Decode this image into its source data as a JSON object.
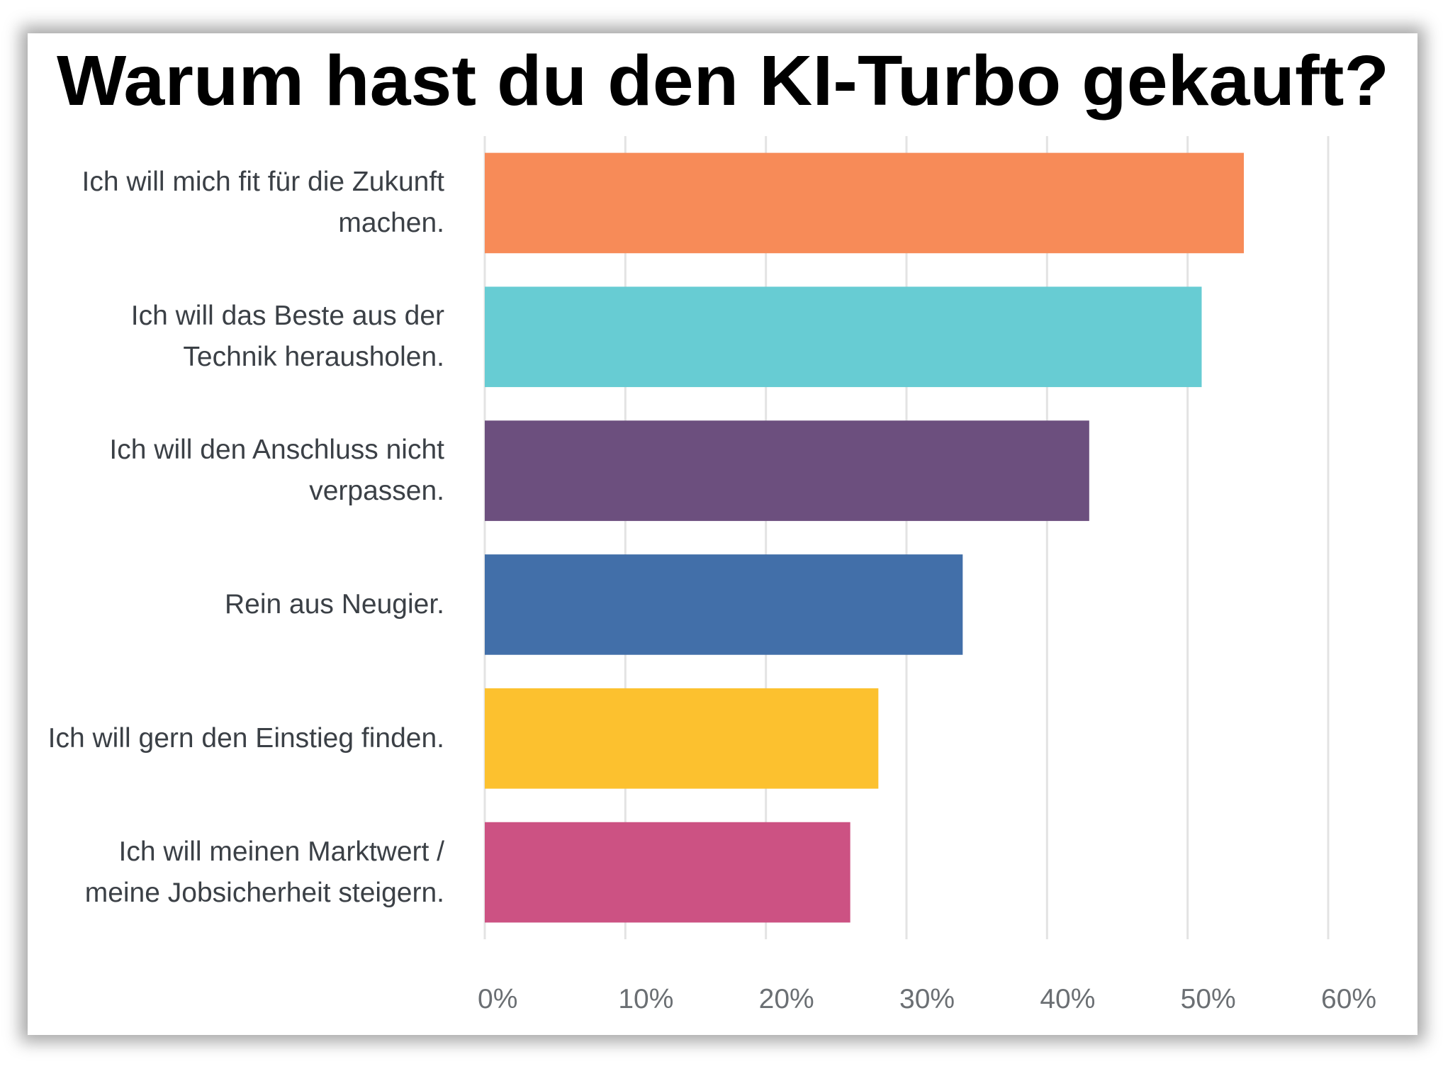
{
  "chart_data": {
    "type": "bar",
    "orientation": "horizontal",
    "title": "Warum hast du den KI-Turbo gekauft?",
    "categories": [
      "Ich will mich fit für die Zukunft machen.",
      "Ich will das Beste aus der Technik herausholen.",
      "Ich will den Anschluss nicht verpassen.",
      "Rein aus Neugier.",
      "Ich will gern den Einstieg finden.",
      "Ich will meinen Marktwert / meine Jobsicherheit steigern."
    ],
    "values": [
      54,
      51,
      43,
      34,
      28,
      26
    ],
    "colors": [
      "#f78b58",
      "#67ccd3",
      "#6c4f7e",
      "#426fa9",
      "#fcc12f",
      "#cc5283"
    ],
    "xlim": [
      0,
      60
    ],
    "xticks": [
      {
        "value": 0,
        "label": "0%"
      },
      {
        "value": 10,
        "label": "10%"
      },
      {
        "value": 20,
        "label": "20%"
      },
      {
        "value": 30,
        "label": "30%"
      },
      {
        "value": 40,
        "label": "40%"
      },
      {
        "value": 50,
        "label": "50%"
      },
      {
        "value": 60,
        "label": "60%"
      }
    ],
    "grid": true
  }
}
